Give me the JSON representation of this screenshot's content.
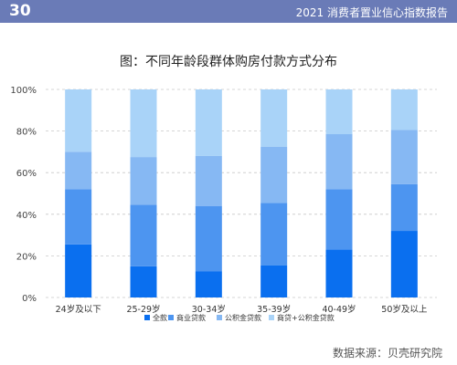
{
  "header": {
    "page_number": "30",
    "report_title": "2021 消费者置业信心指数报告"
  },
  "colors": {
    "header_bg": "#6a7bb7",
    "series": [
      "#0a6fef",
      "#4d95f0",
      "#86b8f3",
      "#a9d3f8"
    ]
  },
  "chart_data": {
    "type": "bar",
    "stacked": true,
    "title": "图：不同年龄段群体购房付款方式分布",
    "categories": [
      "24岁及以下",
      "25-29岁",
      "30-34岁",
      "35-39岁",
      "40-49岁",
      "50岁及以上"
    ],
    "series": [
      {
        "name": "全款",
        "values": [
          25.5,
          15,
          12.5,
          15.5,
          23,
          32
        ]
      },
      {
        "name": "商业贷款",
        "values": [
          26.5,
          29.5,
          31.5,
          30,
          29,
          22.5
        ]
      },
      {
        "name": "公积金贷款",
        "values": [
          18,
          23,
          24,
          27,
          26.5,
          26
        ]
      },
      {
        "name": "商贷+公积金贷款",
        "values": [
          30,
          32.5,
          32,
          27.5,
          21.5,
          19.5
        ]
      }
    ],
    "ylim": [
      0,
      100
    ],
    "yticks": [
      "0%",
      "20%",
      "40%",
      "60%",
      "80%",
      "100%"
    ],
    "grid": true,
    "legend_position": "bottom"
  },
  "source": "数据来源：贝壳研究院"
}
